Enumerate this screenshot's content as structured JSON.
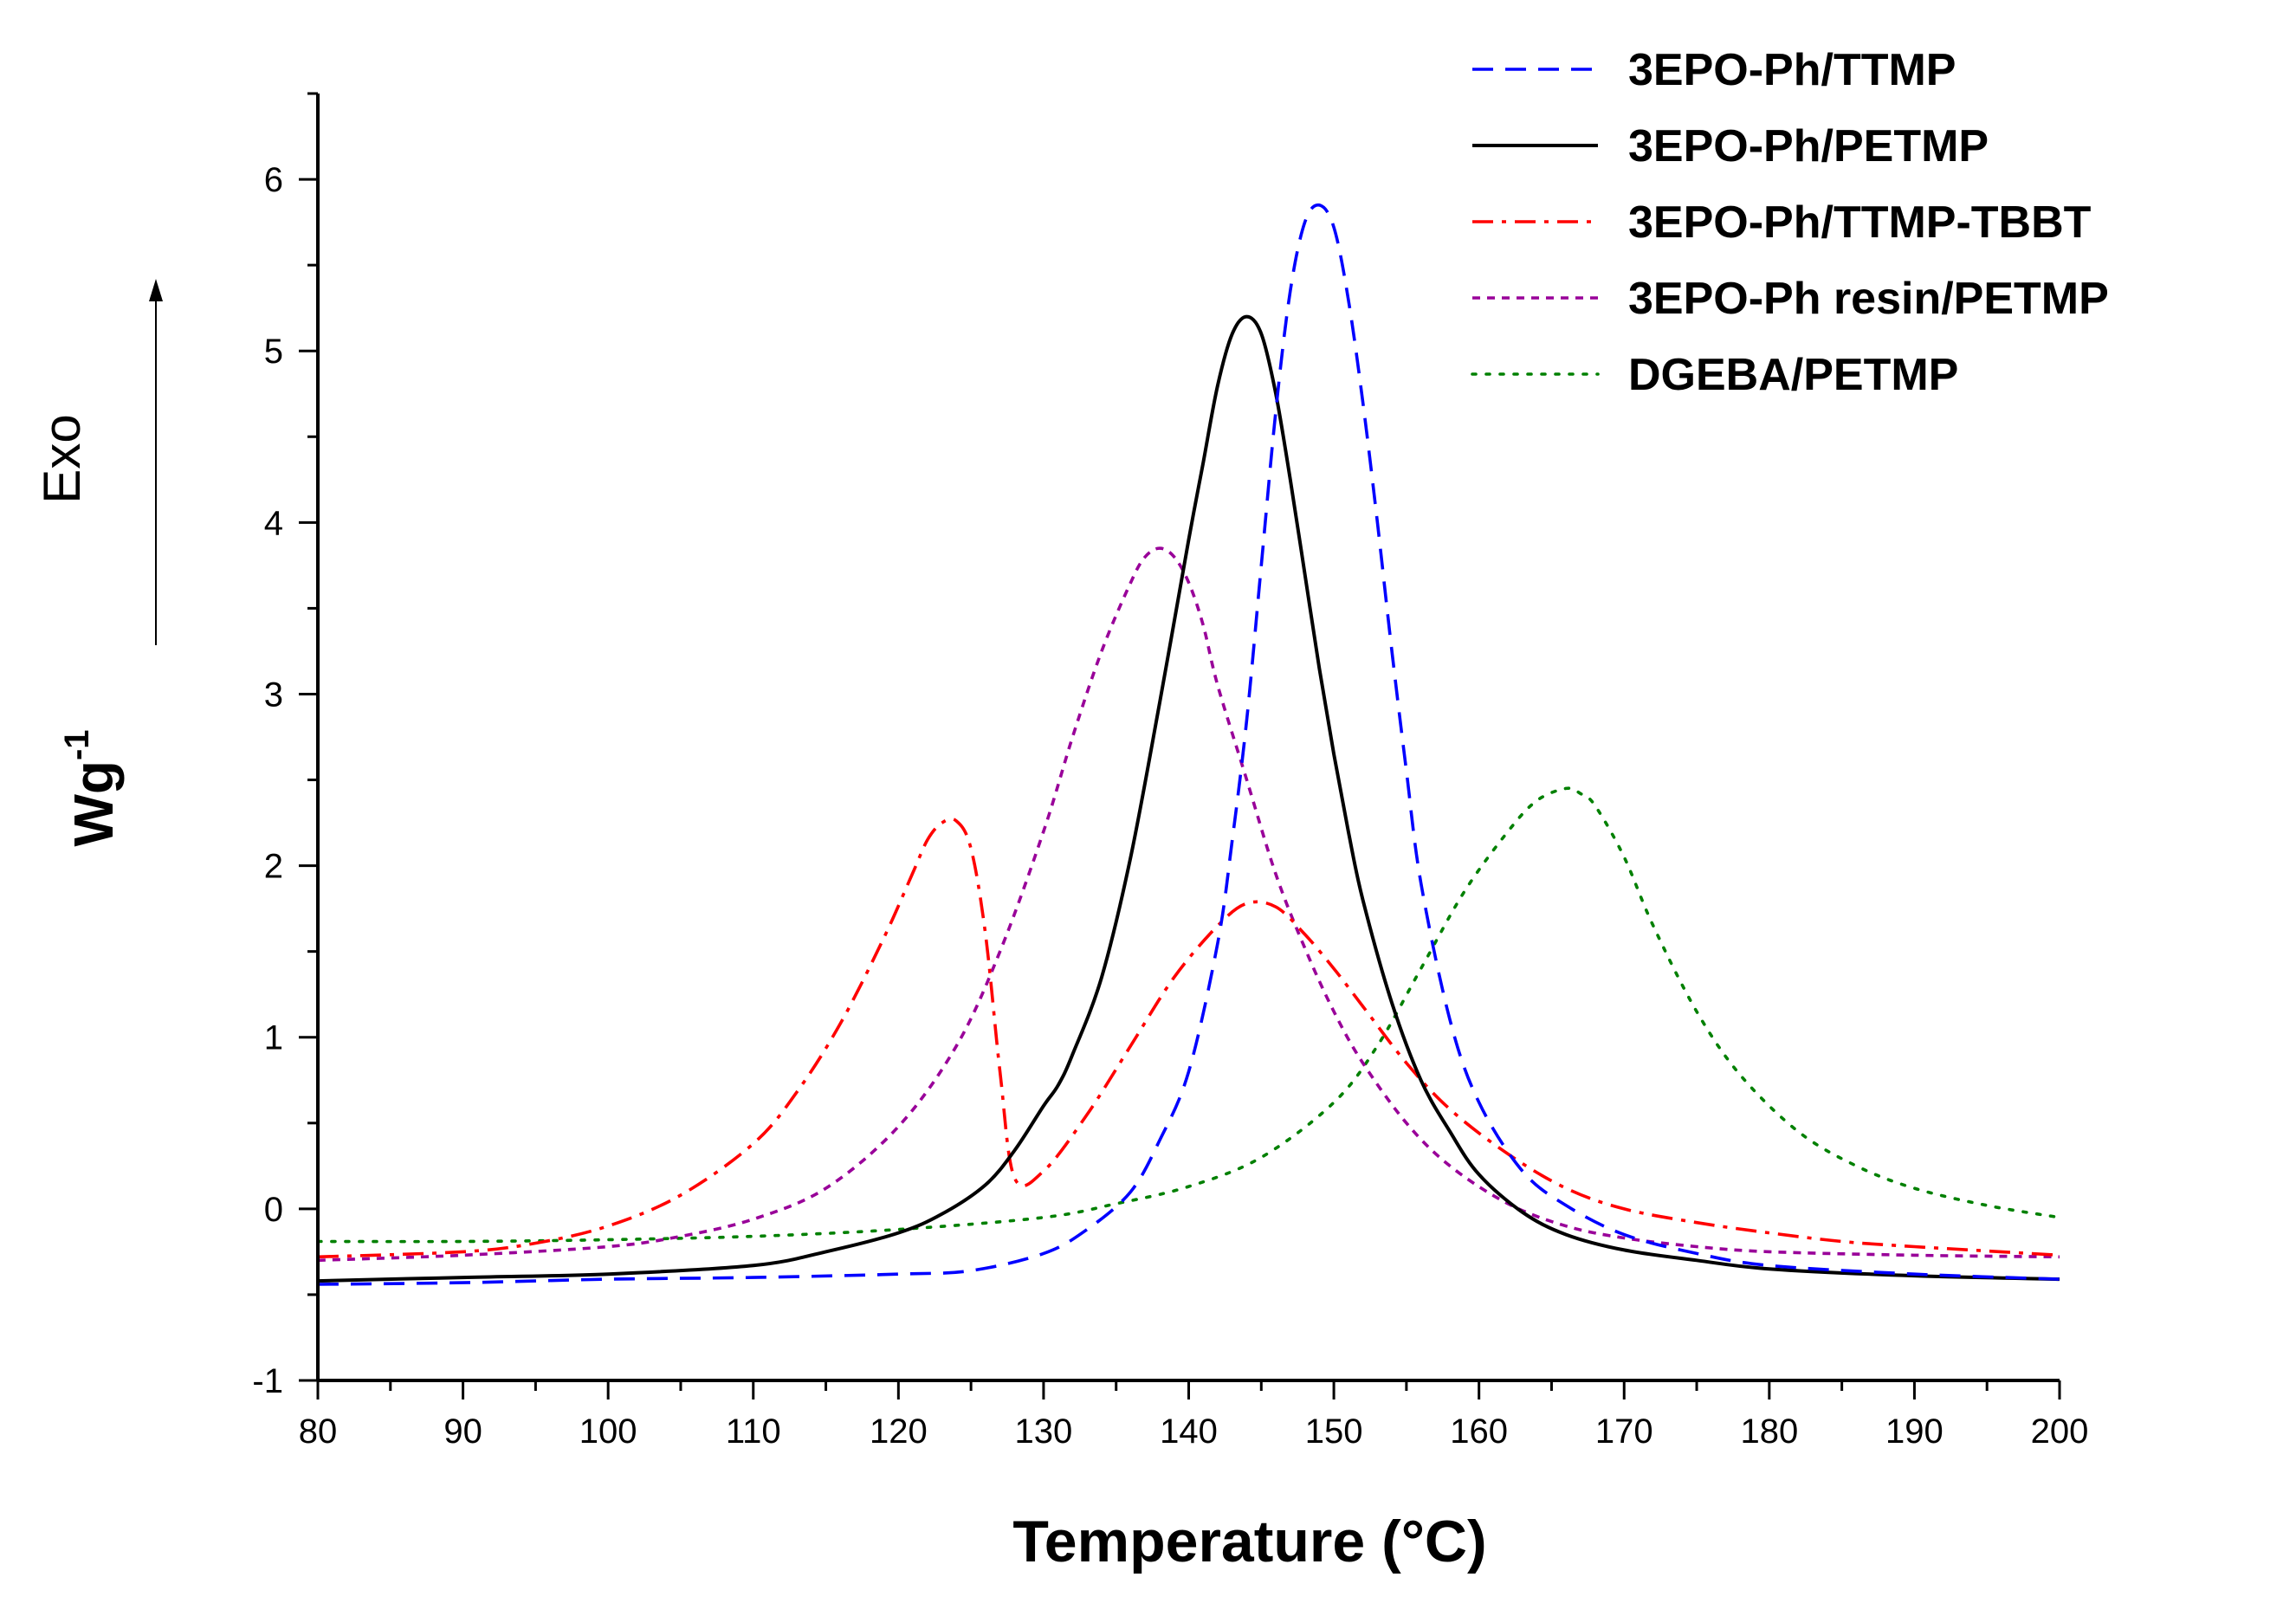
{
  "chart_data": {
    "type": "line",
    "title": "",
    "xlabel": "Temperature (°C)",
    "ylabel": "Wg",
    "ylabel_superscript": "-1",
    "exo_label": "Exo",
    "xlim": [
      80,
      200
    ],
    "ylim": [
      -1,
      6.5
    ],
    "xticks": [
      80,
      90,
      100,
      110,
      120,
      130,
      140,
      150,
      160,
      170,
      180,
      190,
      200
    ],
    "yticks": [
      -1,
      0,
      1,
      2,
      3,
      4,
      5,
      6
    ],
    "legend_position": "top-right",
    "grid": false,
    "series": [
      {
        "name": "3EPO-Ph/TTMP",
        "color": "#0000ff",
        "dash": "dash",
        "x": [
          80,
          90,
          100,
          110,
          120,
          125,
          130,
          133,
          136,
          138,
          140,
          142,
          143,
          144,
          145,
          146,
          147,
          148,
          149,
          150,
          151,
          152,
          153,
          154,
          155,
          156,
          158,
          160,
          163,
          166,
          170,
          175,
          180,
          190,
          200
        ],
        "y": [
          -0.44,
          -0.43,
          -0.41,
          -0.4,
          -0.38,
          -0.36,
          -0.26,
          -0.12,
          0.1,
          0.4,
          0.8,
          1.55,
          2.15,
          2.85,
          3.75,
          4.65,
          5.35,
          5.75,
          5.85,
          5.72,
          5.3,
          4.7,
          4.0,
          3.25,
          2.55,
          1.9,
          1.1,
          0.62,
          0.22,
          0.02,
          -0.15,
          -0.26,
          -0.33,
          -0.38,
          -0.41
        ]
      },
      {
        "name": "3EPO-Ph/PETMP",
        "color": "#000000",
        "dash": "solid",
        "x": [
          80,
          90,
          100,
          110,
          115,
          120,
          123,
          126,
          128,
          130,
          131,
          132,
          134,
          136,
          138,
          140,
          141,
          142,
          143,
          144,
          145,
          146,
          147,
          148,
          149,
          150,
          151,
          152,
          154,
          156,
          158,
          160,
          163,
          166,
          170,
          175,
          180,
          190,
          200
        ],
        "y": [
          -0.42,
          -0.4,
          -0.38,
          -0.33,
          -0.25,
          -0.14,
          -0.03,
          0.14,
          0.34,
          0.6,
          0.72,
          0.9,
          1.35,
          2.05,
          2.95,
          3.9,
          4.35,
          4.8,
          5.1,
          5.2,
          5.1,
          4.75,
          4.25,
          3.7,
          3.15,
          2.65,
          2.2,
          1.8,
          1.2,
          0.75,
          0.45,
          0.2,
          -0.02,
          -0.15,
          -0.24,
          -0.3,
          -0.35,
          -0.39,
          -0.41
        ]
      },
      {
        "name": "3EPO-Ph/TTMP-TBBT",
        "color": "#ff0000",
        "dash": "dashdot",
        "x": [
          80,
          90,
          95,
          100,
          105,
          110,
          113,
          116,
          119,
          121,
          122,
          123,
          124,
          125,
          126,
          127,
          128,
          130,
          133,
          136,
          139,
          142,
          144,
          146,
          148,
          150,
          152,
          155,
          158,
          162,
          166,
          170,
          175,
          180,
          185,
          190,
          200
        ],
        "y": [
          -0.28,
          -0.25,
          -0.2,
          -0.1,
          0.08,
          0.38,
          0.68,
          1.08,
          1.58,
          1.96,
          2.15,
          2.25,
          2.26,
          2.1,
          1.6,
          0.8,
          0.18,
          0.22,
          0.55,
          0.95,
          1.35,
          1.65,
          1.78,
          1.76,
          1.6,
          1.4,
          1.18,
          0.85,
          0.58,
          0.32,
          0.12,
          0.0,
          -0.08,
          -0.14,
          -0.19,
          -0.22,
          -0.27
        ]
      },
      {
        "name": "3EPO-Ph resin/PETMP",
        "color": "#990099",
        "dash": "shortdash",
        "x": [
          80,
          90,
          100,
          105,
          110,
          115,
          120,
          124,
          127,
          130,
          132,
          134,
          136,
          137,
          138,
          139,
          140,
          141,
          142,
          144,
          146,
          148,
          150,
          152,
          155,
          158,
          162,
          166,
          170,
          175,
          180,
          190,
          200
        ],
        "y": [
          -0.3,
          -0.27,
          -0.22,
          -0.16,
          -0.06,
          0.12,
          0.48,
          0.95,
          1.5,
          2.2,
          2.75,
          3.25,
          3.65,
          3.8,
          3.85,
          3.8,
          3.65,
          3.4,
          3.05,
          2.5,
          1.95,
          1.52,
          1.15,
          0.85,
          0.5,
          0.25,
          0.03,
          -0.1,
          -0.17,
          -0.22,
          -0.25,
          -0.27,
          -0.28
        ]
      },
      {
        "name": "DGEBA/PETMP",
        "color": "#008000",
        "dash": "dot",
        "x": [
          80,
          90,
          100,
          110,
          120,
          130,
          135,
          140,
          145,
          150,
          153,
          156,
          159,
          162,
          164,
          166,
          167,
          168,
          170,
          172,
          175,
          178,
          182,
          186,
          190,
          195,
          200
        ],
        "y": [
          -0.19,
          -0.19,
          -0.18,
          -0.16,
          -0.12,
          -0.05,
          0.03,
          0.13,
          0.3,
          0.62,
          0.95,
          1.4,
          1.85,
          2.2,
          2.38,
          2.45,
          2.42,
          2.35,
          2.05,
          1.65,
          1.15,
          0.78,
          0.45,
          0.25,
          0.12,
          0.02,
          -0.05
        ]
      }
    ]
  }
}
